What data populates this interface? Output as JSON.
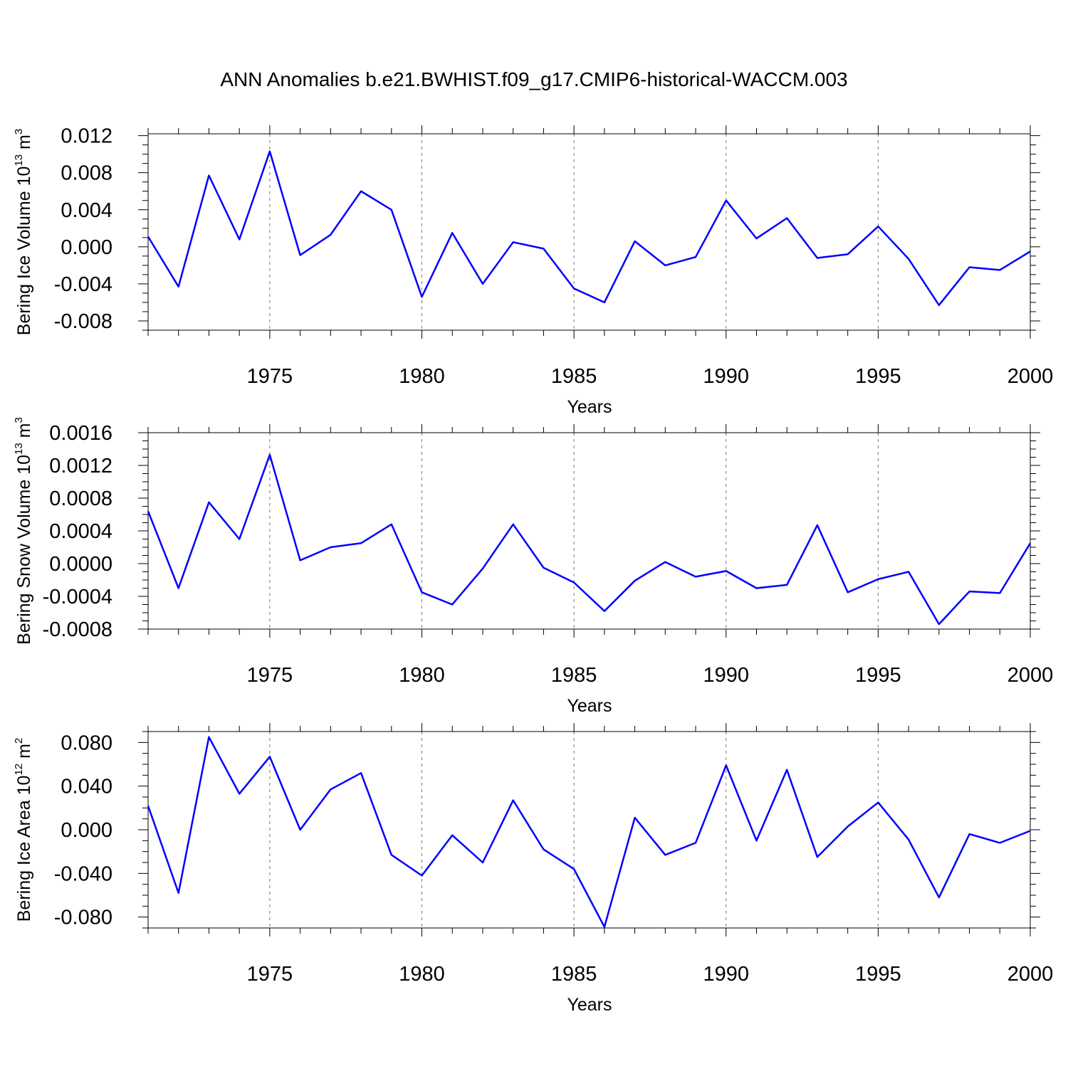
{
  "title": "ANN Anomalies b.e21.BWHIST.f09_g17.CMIP6-historical-WACCM.003",
  "colors": {
    "line": "#0000ff",
    "axis": "#000000",
    "grid": "#777777"
  },
  "chart_data": [
    {
      "type": "line",
      "ylabel": "Bering Ice Volume 10",
      "ylabel_exp": "13",
      "ylabel_unit": "m",
      "ylabel_unit_exp": "3",
      "xlabel": "Years",
      "xlim": [
        1971,
        2000
      ],
      "ylim": [
        -0.009,
        0.0122
      ],
      "yticks": [
        -0.008,
        -0.004,
        0.0,
        0.004,
        0.008,
        0.012
      ],
      "ytick_labels": [
        "-0.008",
        "-0.004",
        "0.000",
        "0.004",
        "0.008",
        "0.012"
      ],
      "xticks": [
        1975,
        1980,
        1985,
        1990,
        1995,
        2000
      ],
      "xtick_labels": [
        "1975",
        "1980",
        "1985",
        "1990",
        "1995",
        "2000"
      ],
      "grid_x": [
        1975,
        1980,
        1985,
        1990,
        1995
      ],
      "x": [
        1971,
        1972,
        1973,
        1974,
        1975,
        1976,
        1977,
        1978,
        1979,
        1980,
        1981,
        1982,
        1983,
        1984,
        1985,
        1986,
        1987,
        1988,
        1989,
        1990,
        1991,
        1992,
        1993,
        1994,
        1995,
        1996,
        1997,
        1998,
        1999,
        2000
      ],
      "values": [
        0.0011,
        -0.0043,
        0.0077,
        0.0008,
        0.0103,
        -0.0009,
        0.0013,
        0.006,
        0.004,
        -0.0054,
        0.0015,
        -0.004,
        0.0005,
        -0.0002,
        -0.0045,
        -0.006,
        0.0006,
        -0.002,
        -0.0011,
        0.005,
        0.0009,
        0.0031,
        -0.0012,
        -0.0008,
        0.0022,
        -0.0013,
        -0.0063,
        -0.0022,
        -0.0025,
        -0.0005
      ]
    },
    {
      "type": "line",
      "ylabel": "Bering Snow Volume 10",
      "ylabel_exp": "13",
      "ylabel_unit": "m",
      "ylabel_unit_exp": "3",
      "xlabel": "Years",
      "xlim": [
        1971,
        2000
      ],
      "ylim": [
        -0.0008,
        0.0016
      ],
      "yticks": [
        -0.0008,
        -0.0004,
        0.0,
        0.0004,
        0.0008,
        0.0012,
        0.0016
      ],
      "ytick_labels": [
        "-0.0008",
        "-0.0004",
        "0.0000",
        "0.0004",
        "0.0008",
        "0.0012",
        "0.0016"
      ],
      "xticks": [
        1975,
        1980,
        1985,
        1990,
        1995,
        2000
      ],
      "xtick_labels": [
        "1975",
        "1980",
        "1985",
        "1990",
        "1995",
        "2000"
      ],
      "grid_x": [
        1975,
        1980,
        1985,
        1990,
        1995
      ],
      "x": [
        1971,
        1972,
        1973,
        1974,
        1975,
        1976,
        1977,
        1978,
        1979,
        1980,
        1981,
        1982,
        1983,
        1984,
        1985,
        1986,
        1987,
        1988,
        1989,
        1990,
        1991,
        1992,
        1993,
        1994,
        1995,
        1996,
        1997,
        1998,
        1999,
        2000
      ],
      "values": [
        0.00064,
        -0.0003,
        0.00075,
        0.0003,
        0.00133,
        4e-05,
        0.0002,
        0.00025,
        0.00048,
        -0.00035,
        -0.0005,
        -6e-05,
        0.00048,
        -5e-05,
        -0.00023,
        -0.00058,
        -0.00021,
        2e-05,
        -0.00016,
        -9e-05,
        -0.0003,
        -0.00026,
        0.00047,
        -0.00035,
        -0.00019,
        -0.0001,
        -0.00074,
        -0.00034,
        -0.00036,
        0.00025
      ]
    },
    {
      "type": "line",
      "ylabel": "Bering Ice Area 10",
      "ylabel_exp": "12",
      "ylabel_unit": "m",
      "ylabel_unit_exp": "2",
      "xlabel": "Years",
      "xlim": [
        1971,
        2000
      ],
      "ylim": [
        -0.09,
        0.09
      ],
      "yticks": [
        -0.08,
        -0.04,
        0.0,
        0.04,
        0.08
      ],
      "ytick_labels": [
        "-0.080",
        "-0.040",
        "0.000",
        "0.040",
        "0.080"
      ],
      "xticks": [
        1975,
        1980,
        1985,
        1990,
        1995,
        2000
      ],
      "xtick_labels": [
        "1975",
        "1980",
        "1985",
        "1990",
        "1995",
        "2000"
      ],
      "grid_x": [
        1975,
        1980,
        1985,
        1990,
        1995
      ],
      "x": [
        1971,
        1972,
        1973,
        1974,
        1975,
        1976,
        1977,
        1978,
        1979,
        1980,
        1981,
        1982,
        1983,
        1984,
        1985,
        1986,
        1987,
        1988,
        1989,
        1990,
        1991,
        1992,
        1993,
        1994,
        1995,
        1996,
        1997,
        1998,
        1999,
        2000
      ],
      "values": [
        0.022,
        -0.058,
        0.085,
        0.033,
        0.067,
        0.0,
        0.037,
        0.052,
        -0.023,
        -0.042,
        -0.005,
        -0.03,
        0.027,
        -0.018,
        -0.036,
        -0.089,
        0.011,
        -0.023,
        -0.012,
        0.059,
        -0.01,
        0.055,
        -0.025,
        0.003,
        0.025,
        -0.009,
        -0.062,
        -0.004,
        -0.012,
        -0.001
      ]
    }
  ]
}
